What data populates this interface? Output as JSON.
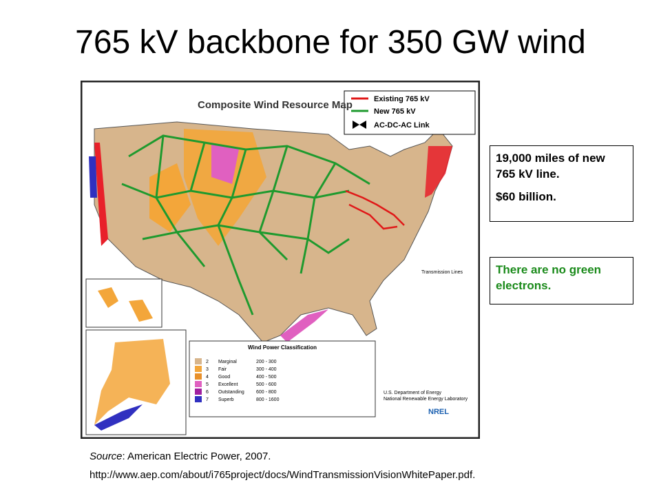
{
  "header": {
    "title": "765 kV backbone for 350 GW wind"
  },
  "map": {
    "title": "Composite Wind Resource Map",
    "legend": [
      "Existing 765 kV",
      "New 765 kV",
      "AC-DC-AC Link"
    ],
    "transmission_title": "Transmission Lines",
    "classification": {
      "title": "Wind Power Classification",
      "rows": [
        [
          "2",
          "Marginal",
          "200 - 300"
        ],
        [
          "3",
          "Fair",
          "300 - 400"
        ],
        [
          "4",
          "Good",
          "400 - 500"
        ],
        [
          "5",
          "Excellent",
          "500 - 600"
        ],
        [
          "6",
          "Outstanding",
          "600 - 800"
        ],
        [
          "7",
          "Superb",
          "800 - 1600"
        ]
      ]
    },
    "agency": [
      "U.S. Department of Energy",
      "National Renewable Energy Laboratory"
    ],
    "logo": "NREL"
  },
  "callouts": {
    "cost": [
      "19,000 miles of new 765 kV line.",
      "$60 billion."
    ],
    "note": "There are no green electrons."
  },
  "source": {
    "label": "Source",
    "text": ": American Electric Power, 2007.",
    "url": "http://www.aep.com/about/i765project/docs/WindTransmissionVisionWhitePaper.pdf."
  }
}
